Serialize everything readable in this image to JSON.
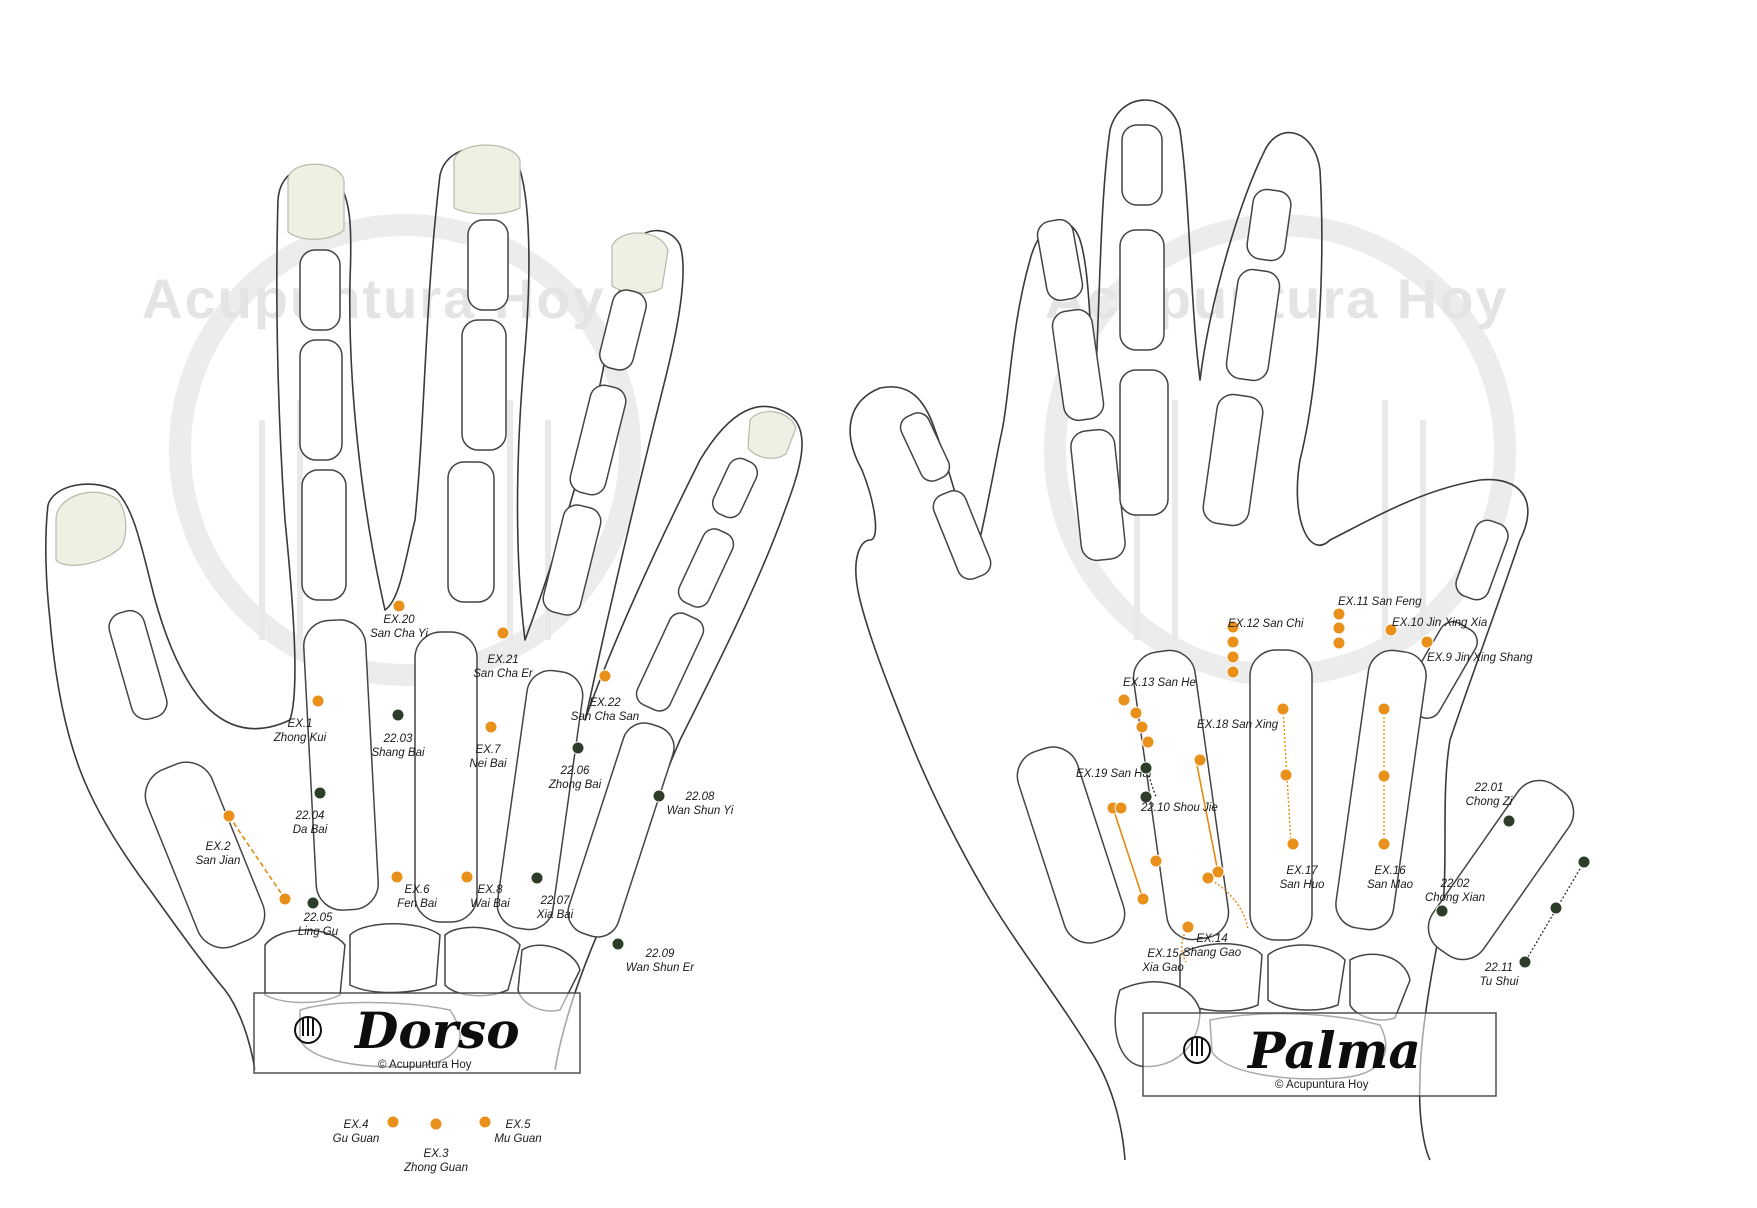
{
  "watermark": {
    "text": "Acupuntura Hoy"
  },
  "colors": {
    "extra_point": "#e8901a",
    "tung_point": "#2e3d2a",
    "outline": "#3a3a3a",
    "nail": "#eef0e4"
  },
  "panels": [
    {
      "id": "dorso",
      "title": "Dorso",
      "copyright": "© Acupuntura Hoy",
      "logo_icon": "acupuncture-logo-icon"
    },
    {
      "id": "palma",
      "title": "Palma",
      "copyright": "© Acupuntura Hoy",
      "logo_icon": "acupuncture-logo-icon"
    }
  ],
  "dorso_points": [
    {
      "code": "EX.20",
      "name": "San Cha Yi",
      "kind": "extra"
    },
    {
      "code": "EX.21",
      "name": "San Cha Er",
      "kind": "extra"
    },
    {
      "code": "EX.22",
      "name": "San Cha San",
      "kind": "extra"
    },
    {
      "code": "EX.1",
      "name": "Zhong Kui",
      "kind": "extra"
    },
    {
      "code": "22.03",
      "name": "Shang Bai",
      "kind": "tung"
    },
    {
      "code": "EX.7",
      "name": "Nei Bai",
      "kind": "extra"
    },
    {
      "code": "22.06",
      "name": "Zhong Bai",
      "kind": "tung"
    },
    {
      "code": "22.08",
      "name": "Wan Shun Yi",
      "kind": "tung"
    },
    {
      "code": "22.04",
      "name": "Da Bai",
      "kind": "tung"
    },
    {
      "code": "EX.2",
      "name": "San Jian",
      "kind": "extra"
    },
    {
      "code": "22.05",
      "name": "Ling Gu",
      "kind": "tung"
    },
    {
      "code": "EX.6",
      "name": "Fen Bai",
      "kind": "extra"
    },
    {
      "code": "EX.8",
      "name": "Wai Bai",
      "kind": "extra"
    },
    {
      "code": "22.07",
      "name": "Xia Bai",
      "kind": "tung"
    },
    {
      "code": "22.09",
      "name": "Wan Shun Er",
      "kind": "tung"
    },
    {
      "code": "EX.4",
      "name": "Gu Guan",
      "kind": "extra"
    },
    {
      "code": "EX.3",
      "name": "Zhong Guan",
      "kind": "extra"
    },
    {
      "code": "EX.5",
      "name": "Mu Guan",
      "kind": "extra"
    }
  ],
  "palma_points": [
    {
      "code": "EX.11",
      "name": "San Feng",
      "kind": "extra"
    },
    {
      "code": "EX.12",
      "name": "San Chi",
      "kind": "extra"
    },
    {
      "code": "EX.10",
      "name": "Jin Xing Xia",
      "kind": "extra"
    },
    {
      "code": "EX.9",
      "name": "Jin Xing Shang",
      "kind": "extra"
    },
    {
      "code": "EX.13",
      "name": "San He",
      "kind": "extra"
    },
    {
      "code": "EX.18",
      "name": "San Xing",
      "kind": "extra"
    },
    {
      "code": "EX.19",
      "name": "San Hai",
      "kind": "extra"
    },
    {
      "code": "22.10",
      "name": "Shou Jie",
      "kind": "tung"
    },
    {
      "code": "22.01",
      "name": "Chong Zi",
      "kind": "tung"
    },
    {
      "code": "EX.17",
      "name": "San Huo",
      "kind": "extra"
    },
    {
      "code": "EX.16",
      "name": "San Mao",
      "kind": "extra"
    },
    {
      "code": "22.02",
      "name": "Chong Xian",
      "kind": "tung"
    },
    {
      "code": "EX.14",
      "name": "Shang Gao",
      "kind": "extra"
    },
    {
      "code": "EX.15",
      "name": "Xia Gao",
      "kind": "extra"
    },
    {
      "code": "22.11",
      "name": "Tu Shui",
      "kind": "tung"
    }
  ]
}
